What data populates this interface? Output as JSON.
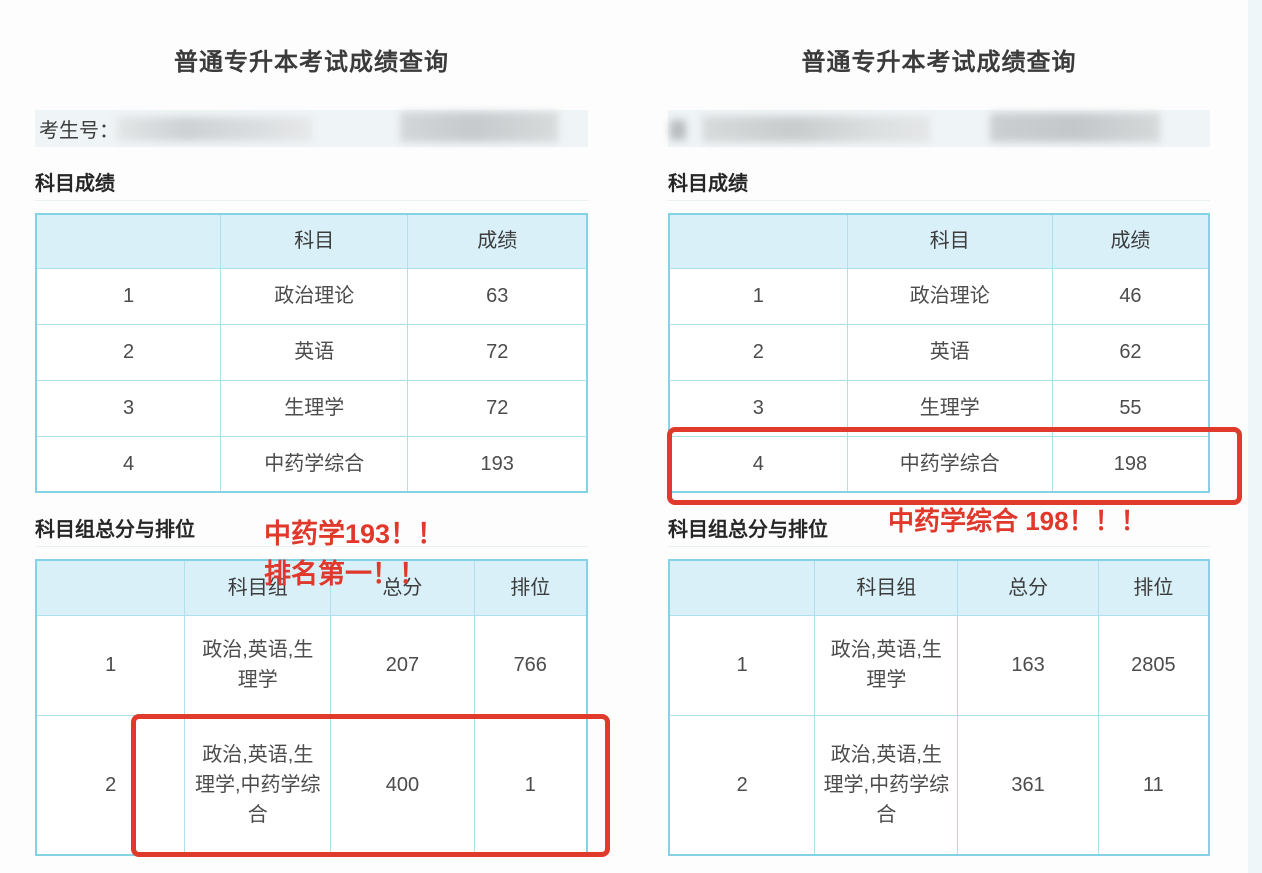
{
  "colors": {
    "table_border_outer": "#84d2e5",
    "table_border_inner": "#aee0ee",
    "table_header_bg": "#d9f0f9",
    "candidate_row_bg": "#eff4f6",
    "highlight_red": "#e03a2c",
    "text_dark": "#3b3b3b"
  },
  "panels": [
    {
      "title": "普通专升本考试成绩查询",
      "candidate_label": "考生号：",
      "subject_section_title": "科目成绩",
      "subject_table": {
        "headers": {
          "index": "",
          "subject": "科目",
          "score": "成绩"
        },
        "rows": [
          {
            "index": "1",
            "subject": "政治理论",
            "score": "63"
          },
          {
            "index": "2",
            "subject": "英语",
            "score": "72"
          },
          {
            "index": "3",
            "subject": "生理学",
            "score": "72"
          },
          {
            "index": "4",
            "subject": "中药学综合",
            "score": "193"
          }
        ]
      },
      "group_section_title": "科目组总分与排位",
      "group_table": {
        "headers": {
          "index": "",
          "group": "科目组",
          "total": "总分",
          "rank": "排位"
        },
        "rows": [
          {
            "index": "1",
            "group": "政治,英语,生理学",
            "total": "207",
            "rank": "766"
          },
          {
            "index": "2",
            "group": "政治,英语,生理学,中药学综合",
            "total": "400",
            "rank": "1"
          }
        ]
      },
      "annotation": {
        "line1": "中药学193！！",
        "line2": "排名第一！！"
      }
    },
    {
      "title": "普通专升本考试成绩查询",
      "candidate_label": "",
      "subject_section_title": "科目成绩",
      "subject_table": {
        "headers": {
          "index": "",
          "subject": "科目",
          "score": "成绩"
        },
        "rows": [
          {
            "index": "1",
            "subject": "政治理论",
            "score": "46"
          },
          {
            "index": "2",
            "subject": "英语",
            "score": "62"
          },
          {
            "index": "3",
            "subject": "生理学",
            "score": "55"
          },
          {
            "index": "4",
            "subject": "中药学综合",
            "score": "198"
          }
        ]
      },
      "group_section_title": "科目组总分与排位",
      "group_table": {
        "headers": {
          "index": "",
          "group": "科目组",
          "total": "总分",
          "rank": "排位"
        },
        "rows": [
          {
            "index": "1",
            "group": "政治,英语,生理学",
            "total": "163",
            "rank": "2805"
          },
          {
            "index": "2",
            "group": "政治,英语,生理学,中药学综合",
            "total": "361",
            "rank": "11"
          }
        ]
      },
      "annotation": {
        "line1": "中药学综合 198！！！"
      }
    }
  ]
}
